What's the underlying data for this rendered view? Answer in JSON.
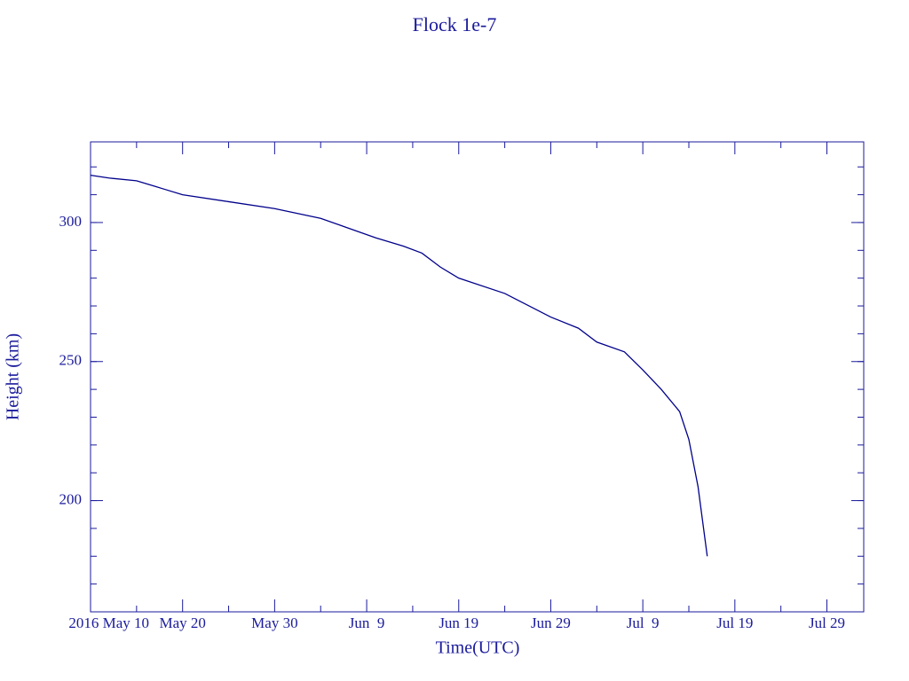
{
  "chart_data": {
    "type": "line",
    "title": "Flock 1e-7",
    "x_label": "Time(UTC)",
    "y_label": "Height (km)",
    "color": "#00008b",
    "xlim": [
      "2016-05-10",
      "2016-08-02"
    ],
    "ylim": [
      160,
      329
    ],
    "xticks": [
      {
        "value": "2016-05-10",
        "label": "2016 May 10"
      },
      {
        "value": "2016-05-20",
        "label": "May 20"
      },
      {
        "value": "2016-05-30",
        "label": "May 30"
      },
      {
        "value": "2016-06-09",
        "label": "Jun  9"
      },
      {
        "value": "2016-06-19",
        "label": "Jun 19"
      },
      {
        "value": "2016-06-29",
        "label": "Jun 29"
      },
      {
        "value": "2016-07-09",
        "label": "Jul  9"
      },
      {
        "value": "2016-07-19",
        "label": "Jul 19"
      },
      {
        "value": "2016-07-29",
        "label": "Jul 29"
      }
    ],
    "yticks": [
      200,
      250,
      300
    ],
    "x": [
      "2016-05-10",
      "2016-05-12",
      "2016-05-15",
      "2016-05-17",
      "2016-05-18",
      "2016-05-20",
      "2016-05-25",
      "2016-05-30",
      "2016-06-04",
      "2016-06-07",
      "2016-06-10",
      "2016-06-13",
      "2016-06-15",
      "2016-06-17",
      "2016-06-19",
      "2016-06-24",
      "2016-06-29",
      "2016-07-02",
      "2016-07-04",
      "2016-07-07",
      "2016-07-09",
      "2016-07-11",
      "2016-07-13",
      "2016-07-14",
      "2016-07-15",
      "2016-07-16"
    ],
    "series": [
      {
        "name": "Height",
        "color": "#00008b",
        "values": [
          317,
          316,
          315,
          313,
          312,
          310,
          307.5,
          305,
          301.5,
          298,
          294.5,
          291.5,
          289,
          284,
          280,
          274.5,
          266,
          262,
          257,
          253.5,
          247,
          240,
          232,
          222,
          205,
          180
        ]
      }
    ]
  }
}
